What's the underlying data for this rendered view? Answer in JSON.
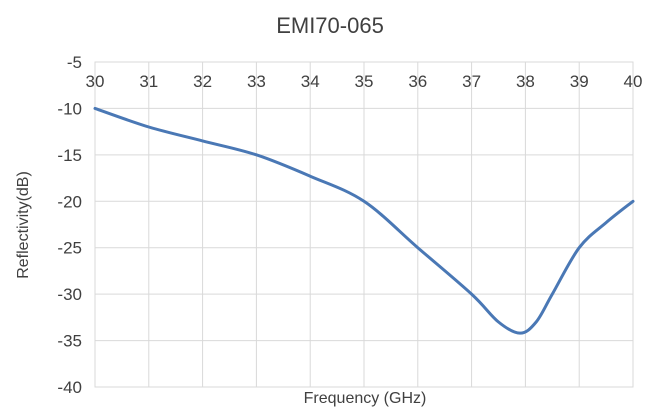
{
  "chart_data": {
    "type": "line",
    "title": "EMI70-065",
    "xlabel": "Frequency (GHz)",
    "ylabel": "Reflectivity(dB)",
    "xlim": [
      30,
      40
    ],
    "ylim": [
      -40,
      -5
    ],
    "x_ticks": [
      "30",
      "31",
      "32",
      "33",
      "34",
      "35",
      "36",
      "37",
      "38",
      "39",
      "40"
    ],
    "y_ticks": [
      "-5",
      "-10",
      "-15",
      "-20",
      "-25",
      "-30",
      "-35",
      "-40"
    ],
    "grid": true,
    "legend": "none",
    "series": [
      {
        "color": "#4a78b5",
        "x": [
          30,
          31,
          32,
          33,
          34,
          35,
          36,
          37,
          37.5,
          37.9,
          38.2,
          38.5,
          39,
          39.5,
          40
        ],
        "y": [
          -10,
          -12,
          -13.5,
          -15,
          -17.3,
          -20,
          -25,
          -30,
          -33,
          -34.2,
          -33,
          -30,
          -25,
          -22.3,
          -20
        ]
      }
    ]
  }
}
